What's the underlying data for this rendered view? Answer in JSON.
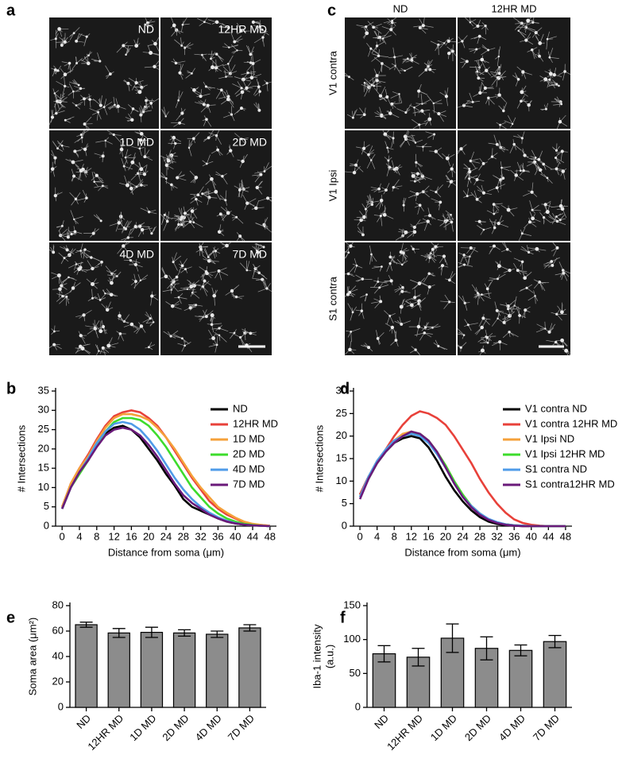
{
  "images": [
    {
      "panel": "a",
      "labels": [
        "ND",
        "12HR MD",
        "1D MD",
        "2D MD",
        "4D MD",
        "7D MD"
      ]
    },
    {
      "panel": "c",
      "columns": [
        "ND",
        "12HR MD"
      ],
      "rows": [
        "V1 contra",
        "V1 Ipsi",
        "S1 contra"
      ]
    }
  ],
  "chart_data": [
    {
      "type": "line",
      "panel": "b",
      "ylabel": "# Intersections",
      "xlabel": "Distance from soma (μm)",
      "x": [
        0,
        2,
        4,
        6,
        8,
        10,
        12,
        14,
        16,
        18,
        20,
        22,
        24,
        26,
        28,
        30,
        32,
        34,
        36,
        38,
        40,
        42,
        44,
        46,
        48
      ],
      "xlim": [
        -1.5,
        49.5
      ],
      "xticks": [
        0,
        4,
        8,
        12,
        16,
        20,
        24,
        28,
        32,
        36,
        40,
        44,
        48
      ],
      "ylim": [
        0,
        35
      ],
      "yticks": [
        0,
        5,
        10,
        15,
        20,
        25,
        30,
        35
      ],
      "legend": "upper right",
      "series": [
        {
          "name": "ND",
          "color": "#000000",
          "values": [
            4.5,
            10,
            14,
            17,
            21,
            24,
            25.5,
            26,
            25,
            23,
            20,
            17,
            13.5,
            10.5,
            7,
            5,
            4,
            3,
            2,
            1.2,
            0.7,
            0.4,
            0.2,
            0.1,
            0
          ]
        },
        {
          "name": "12HR MD",
          "color": "#e8413a",
          "values": [
            5,
            11,
            15,
            18.5,
            22.5,
            26,
            28.5,
            29.5,
            30,
            29.5,
            28,
            26,
            23,
            19.5,
            16,
            12.5,
            9.5,
            6.5,
            4.5,
            3,
            2,
            1,
            0.5,
            0.3,
            0.1
          ]
        },
        {
          "name": "1D MD",
          "color": "#f5a13a",
          "values": [
            5,
            11,
            15,
            18,
            22,
            25.5,
            28,
            29,
            29,
            28.5,
            27.5,
            25.5,
            23,
            20,
            16.5,
            13,
            10,
            7.5,
            5,
            3.5,
            2.2,
            1.2,
            0.6,
            0.3,
            0.1
          ]
        },
        {
          "name": "2D MD",
          "color": "#3ddc2c",
          "values": [
            4.5,
            10,
            13.5,
            17,
            21,
            24.5,
            27,
            28,
            28,
            27.5,
            26,
            23.5,
            20.5,
            17,
            13.5,
            10,
            7.5,
            5,
            3.3,
            2,
            1.2,
            0.6,
            0.3,
            0.1,
            0
          ]
        },
        {
          "name": "4D MD",
          "color": "#4f9be8",
          "values": [
            4.5,
            10,
            14,
            17.5,
            21.5,
            24.5,
            26.5,
            27,
            26.5,
            25,
            22.5,
            19.5,
            16,
            12.5,
            9.5,
            7,
            5,
            3.5,
            2.3,
            1.4,
            0.8,
            0.4,
            0.2,
            0.1,
            0
          ]
        },
        {
          "name": "7D MD",
          "color": "#6a1a7a",
          "values": [
            4.5,
            10,
            14,
            17,
            20.5,
            23.5,
            25,
            25.5,
            25,
            23.5,
            21,
            18,
            14.5,
            11,
            8,
            6,
            4.5,
            3,
            2,
            1.2,
            0.7,
            0.4,
            0.2,
            0.1,
            0
          ]
        }
      ]
    },
    {
      "type": "line",
      "panel": "d",
      "ylabel": "# Intersections",
      "xlabel": "Distance from soma (μm)",
      "x": [
        0,
        2,
        4,
        6,
        8,
        10,
        12,
        14,
        16,
        18,
        20,
        22,
        24,
        26,
        28,
        30,
        32,
        34,
        36,
        38,
        40,
        42,
        44,
        46,
        48
      ],
      "xlim": [
        -1.5,
        49.5
      ],
      "xticks": [
        0,
        4,
        8,
        12,
        16,
        20,
        24,
        28,
        32,
        36,
        40,
        44,
        48
      ],
      "ylim": [
        0,
        30
      ],
      "yticks": [
        0,
        5,
        10,
        15,
        20,
        25,
        30
      ],
      "legend": "upper right",
      "series": [
        {
          "name": "V1 contra ND",
          "color": "#000000",
          "values": [
            7,
            11,
            14,
            16.5,
            18.5,
            19.5,
            20,
            19.5,
            17.5,
            14.5,
            11,
            8,
            5.5,
            3.5,
            2,
            1,
            0.5,
            0.2,
            0.1,
            0,
            0,
            0,
            0,
            0,
            0
          ]
        },
        {
          "name": "V1 contra 12HR MD",
          "color": "#e8413a",
          "values": [
            7,
            11,
            14,
            17,
            20,
            22.5,
            24.5,
            25.5,
            25,
            24,
            22.5,
            20,
            17,
            14,
            10.5,
            7.5,
            5,
            3,
            1.5,
            0.7,
            0.3,
            0.1,
            0,
            0,
            0
          ]
        },
        {
          "name": "V1 Ipsi ND",
          "color": "#f5a13a",
          "values": [
            6.5,
            11,
            14.5,
            17,
            19,
            20.5,
            21,
            20.5,
            19,
            16.5,
            13.5,
            10,
            7,
            4.5,
            2.8,
            1.5,
            0.8,
            0.4,
            0.2,
            0.1,
            0,
            0,
            0,
            0,
            0
          ]
        },
        {
          "name": "V1 Ipsi 12HR MD",
          "color": "#3ddc2c",
          "values": [
            6.5,
            10.5,
            14,
            16.5,
            18.5,
            20,
            20.5,
            20.5,
            19,
            16.5,
            13.5,
            10,
            7,
            4.5,
            2.8,
            1.5,
            0.8,
            0.4,
            0.2,
            0.1,
            0,
            0,
            0,
            0,
            0
          ]
        },
        {
          "name": "S1 contra ND",
          "color": "#4f9be8",
          "values": [
            6.5,
            11,
            14.5,
            17,
            19,
            20,
            20.5,
            20,
            18.5,
            16,
            13,
            9.5,
            6.5,
            4.5,
            2.8,
            1.6,
            0.9,
            0.4,
            0.2,
            0.1,
            0,
            0,
            0,
            0,
            0
          ]
        },
        {
          "name": "S1 contra12HR MD",
          "color": "#6a1a7a",
          "values": [
            6,
            10.5,
            14,
            16.5,
            18.5,
            20,
            21,
            20.5,
            19,
            16.5,
            13,
            9.5,
            6.5,
            4.2,
            2.5,
            1.4,
            0.7,
            0.3,
            0.1,
            0,
            0,
            0,
            0,
            0,
            0
          ]
        }
      ]
    },
    {
      "type": "bar",
      "panel": "e",
      "ylabel": [
        "Soma area (μm²)"
      ],
      "categories": [
        "ND",
        "12HR MD",
        "1D MD",
        "2D MD",
        "4D MD",
        "7D MD"
      ],
      "values": [
        65,
        58.5,
        59,
        58.5,
        57.5,
        62.5
      ],
      "errors": [
        2,
        3.5,
        4,
        2.5,
        2.5,
        2.5
      ],
      "color": "#8c8c8c",
      "ylim": [
        0,
        80
      ],
      "yticks": [
        0,
        20,
        40,
        60,
        80
      ]
    },
    {
      "type": "bar",
      "panel": "f",
      "ylabel": [
        "Iba-1 intensity",
        "(a.u.)"
      ],
      "categories": [
        "ND",
        "12HR MD",
        "1D MD",
        "2D MD",
        "4D MD",
        "7D MD"
      ],
      "values": [
        79,
        74,
        102,
        87,
        84,
        97
      ],
      "errors": [
        12,
        13,
        21,
        17,
        8,
        9
      ],
      "color": "#8c8c8c",
      "ylim": [
        0,
        150
      ],
      "yticks": [
        0,
        50,
        100,
        150
      ]
    }
  ]
}
